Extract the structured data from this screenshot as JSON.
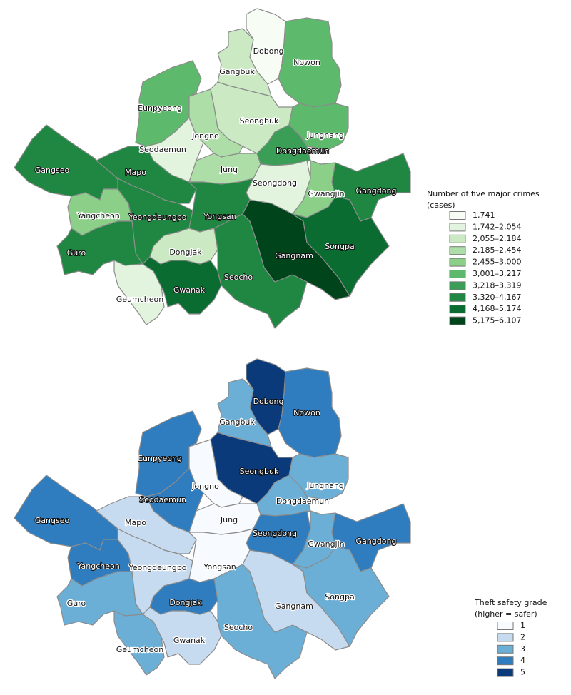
{
  "maps": [
    {
      "legend": {
        "title_lines": [
          "Number of five major crimes",
          "(cases)"
        ],
        "items": [
          {
            "label": "1,741",
            "color": "#f7fcf5"
          },
          {
            "label": "1,742–2,054",
            "color": "#e3f4de"
          },
          {
            "label": "2,055–2,184",
            "color": "#cbeac4"
          },
          {
            "label": "2,185–2,454",
            "color": "#aedea7"
          },
          {
            "label": "2,455–3,000",
            "color": "#8bcf89"
          },
          {
            "label": "3,001–3,217",
            "color": "#5db96b"
          },
          {
            "label": "3,218–3,319",
            "color": "#3a9e57"
          },
          {
            "label": "3,320–4,167",
            "color": "#1f8742"
          },
          {
            "label": "4,168–5,174",
            "color": "#0b6c32"
          },
          {
            "label": "5,175–6,107",
            "color": "#00441b"
          }
        ]
      },
      "districts": [
        {
          "name": "Dobong",
          "color": "#f7fcf5"
        },
        {
          "name": "Nowon",
          "color": "#5db96b"
        },
        {
          "name": "Gangbuk",
          "color": "#cbeac4"
        },
        {
          "name": "Seongbuk",
          "color": "#cbeac4"
        },
        {
          "name": "Jungnang",
          "color": "#5db96b"
        },
        {
          "name": "Dongdaemun",
          "color": "#3a9e57"
        },
        {
          "name": "Eunpyeong",
          "color": "#5db96b"
        },
        {
          "name": "Jongno",
          "color": "#aedea7"
        },
        {
          "name": "Seodaemun",
          "color": "#e3f4de"
        },
        {
          "name": "Jung",
          "color": "#aedea7"
        },
        {
          "name": "Seongdong",
          "color": "#e3f4de"
        },
        {
          "name": "Gwangjin",
          "color": "#8bcf89"
        },
        {
          "name": "Gangdong",
          "color": "#1f8742"
        },
        {
          "name": "Gangseo",
          "color": "#1f8742"
        },
        {
          "name": "Mapo",
          "color": "#1f8742"
        },
        {
          "name": "Yangcheon",
          "color": "#8bcf89"
        },
        {
          "name": "Yeongdeungpo",
          "color": "#1f8742"
        },
        {
          "name": "Yongsan",
          "color": "#1f8742"
        },
        {
          "name": "Guro",
          "color": "#1f8742"
        },
        {
          "name": "Geumcheon",
          "color": "#e3f4de"
        },
        {
          "name": "Dongjak",
          "color": "#cbeac4"
        },
        {
          "name": "Gwanak",
          "color": "#0b6c32"
        },
        {
          "name": "Seocho",
          "color": "#1f8742"
        },
        {
          "name": "Gangnam",
          "color": "#00441b"
        },
        {
          "name": "Songpa",
          "color": "#0b6c32"
        }
      ]
    },
    {
      "legend": {
        "title_lines": [
          "Theft safety grade",
          "(higher = safer)"
        ],
        "items": [
          {
            "label": "1",
            "color": "#f7fbff"
          },
          {
            "label": "2",
            "color": "#c6dbef"
          },
          {
            "label": "3",
            "color": "#6baed6"
          },
          {
            "label": "4",
            "color": "#2f7dbf"
          },
          {
            "label": "5",
            "color": "#0b3a7a"
          }
        ]
      },
      "districts": [
        {
          "name": "Dobong",
          "color": "#0b3a7a"
        },
        {
          "name": "Nowon",
          "color": "#2f7dbf"
        },
        {
          "name": "Gangbuk",
          "color": "#6baed6"
        },
        {
          "name": "Seongbuk",
          "color": "#0b3a7a"
        },
        {
          "name": "Jungnang",
          "color": "#6baed6"
        },
        {
          "name": "Dongdaemun",
          "color": "#6baed6"
        },
        {
          "name": "Eunpyeong",
          "color": "#2f7dbf"
        },
        {
          "name": "Jongno",
          "color": "#f7fbff"
        },
        {
          "name": "Seodaemun",
          "color": "#2f7dbf"
        },
        {
          "name": "Jung",
          "color": "#f7fbff"
        },
        {
          "name": "Seongdong",
          "color": "#2f7dbf"
        },
        {
          "name": "Gwangjin",
          "color": "#6baed6"
        },
        {
          "name": "Gangdong",
          "color": "#2f7dbf"
        },
        {
          "name": "Gangseo",
          "color": "#2f7dbf"
        },
        {
          "name": "Mapo",
          "color": "#c6dbef"
        },
        {
          "name": "Yangcheon",
          "color": "#2f7dbf"
        },
        {
          "name": "Yeongdeungpo",
          "color": "#c6dbef"
        },
        {
          "name": "Yongsan",
          "color": "#f7fbff"
        },
        {
          "name": "Guro",
          "color": "#6baed6"
        },
        {
          "name": "Geumcheon",
          "color": "#6baed6"
        },
        {
          "name": "Dongjak",
          "color": "#2f7dbf"
        },
        {
          "name": "Gwanak",
          "color": "#c6dbef"
        },
        {
          "name": "Seocho",
          "color": "#6baed6"
        },
        {
          "name": "Gangnam",
          "color": "#c6dbef"
        },
        {
          "name": "Songpa",
          "color": "#6baed6"
        }
      ]
    }
  ]
}
